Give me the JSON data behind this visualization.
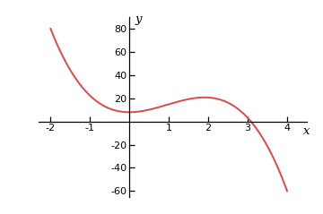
{
  "xlim": [
    -2.3,
    4.5
  ],
  "ylim": [
    -65,
    90
  ],
  "data_xlim": [
    -2,
    4
  ],
  "data_ylim": [
    -60,
    80
  ],
  "xticks": [
    -2,
    -1,
    1,
    2,
    3,
    4
  ],
  "yticks": [
    -60,
    -40,
    -20,
    20,
    40,
    60,
    80
  ],
  "xlabel": "x",
  "ylabel": "y",
  "curve_color": "#e04848",
  "curve_linewidth": 1.4,
  "background_color": "#ffffff",
  "a": -3.708,
  "b": 10.583,
  "c": 0.0,
  "d": 8.0,
  "x_start": -2,
  "x_end": 4,
  "figsize": [
    3.6,
    2.39
  ],
  "dpi": 100
}
